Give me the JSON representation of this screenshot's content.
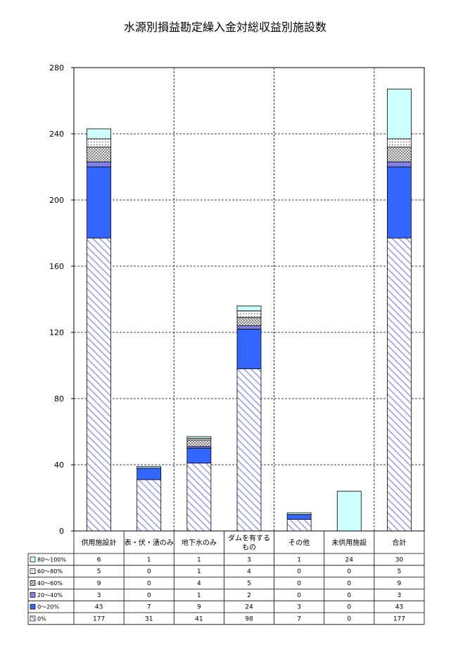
{
  "chart_data": {
    "type": "bar",
    "stacked": true,
    "title": "水源別損益勘定繰入金対総収益別施設数",
    "xlabel": "",
    "ylabel": "",
    "ylim": [
      0,
      280
    ],
    "yticks": [
      0,
      40,
      80,
      120,
      160,
      200,
      240,
      280
    ],
    "grid": true,
    "legend": "data-table",
    "categories": [
      "供用施設計",
      [
        "表・伏・湧のみ"
      ],
      "地下水のみ",
      [
        "ダムを有する",
        "もの"
      ],
      "その他",
      "未供用施設",
      "合計"
    ],
    "series": [
      {
        "name": "0%",
        "values": [
          177,
          31,
          41,
          98,
          7,
          0,
          177
        ],
        "pattern": "hatch",
        "color": "#9999ee"
      },
      {
        "name": "0～20%",
        "values": [
          43,
          7,
          9,
          24,
          3,
          0,
          43
        ],
        "pattern": "solid",
        "color": "#3366ff"
      },
      {
        "name": "20～40%",
        "values": [
          3,
          0,
          1,
          2,
          0,
          0,
          3
        ],
        "pattern": "solid",
        "color": "#8080e6"
      },
      {
        "name": "40～60%",
        "values": [
          9,
          0,
          4,
          5,
          0,
          0,
          9
        ],
        "pattern": "check",
        "color": "#b4b4b4"
      },
      {
        "name": "60～80%",
        "values": [
          5,
          0,
          1,
          4,
          0,
          0,
          5
        ],
        "pattern": "dots",
        "color": "#808080"
      },
      {
        "name": "80～100%",
        "values": [
          6,
          1,
          1,
          3,
          1,
          24,
          30
        ],
        "pattern": "solid",
        "color": "#ccffff"
      }
    ]
  }
}
